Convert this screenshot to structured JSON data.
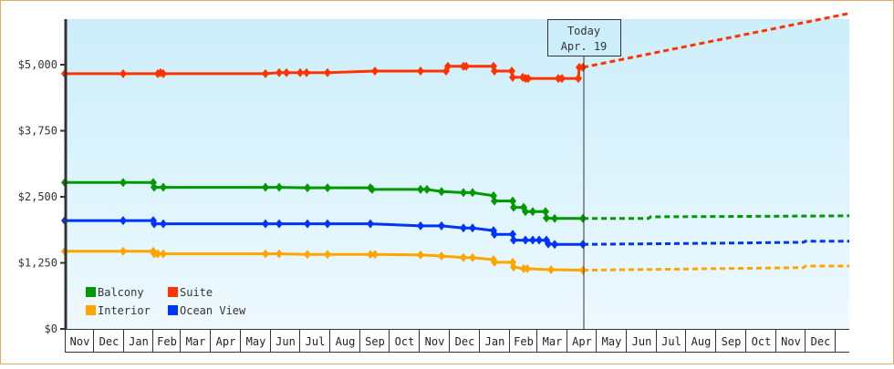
{
  "chart_data": {
    "type": "line",
    "title": "",
    "xlabel": "",
    "ylabel": "",
    "ylim": [
      0,
      5000
    ],
    "y_ticks": [
      "$0",
      "$1,250",
      "$2,500",
      "$3,750",
      "$5,000"
    ],
    "y_tick_values": [
      0,
      1250,
      2500,
      3750,
      5000
    ],
    "x_months": [
      "Nov",
      "Dec",
      "Jan",
      "Feb",
      "Mar",
      "Apr",
      "May",
      "Jun",
      "Jul",
      "Aug",
      "Sep",
      "Oct",
      "Nov",
      "Dec",
      "Jan",
      "Feb",
      "Mar",
      "Apr",
      "May",
      "Jun",
      "Jul",
      "Aug",
      "Sep",
      "Oct",
      "Nov",
      "Dec"
    ],
    "today_marker": {
      "line1": "Today",
      "line2": "Apr. 19"
    },
    "legend": [
      {
        "name": "Balcony",
        "color": "#009900"
      },
      {
        "name": "Suite",
        "color": "#ff3300"
      },
      {
        "name": "Interior",
        "color": "#ffa500"
      },
      {
        "name": "Ocean View",
        "color": "#0033ff"
      }
    ],
    "series": [
      {
        "name": "Suite",
        "color": "#ff3300",
        "points": [
          [
            70,
            4830
          ],
          [
            134,
            4830
          ],
          [
            172,
            4830
          ],
          [
            175,
            4850
          ],
          [
            178,
            4830
          ],
          [
            290,
            4830
          ],
          [
            305,
            4850
          ],
          [
            313,
            4850
          ],
          [
            328,
            4850
          ],
          [
            335,
            4850
          ],
          [
            358,
            4850
          ],
          [
            410,
            4880
          ],
          [
            460,
            4880
          ],
          [
            488,
            4880
          ],
          [
            490,
            4970
          ],
          [
            507,
            4970
          ],
          [
            510,
            4970
          ],
          [
            540,
            4970
          ],
          [
            541,
            4880
          ],
          [
            560,
            4880
          ],
          [
            561,
            4760
          ],
          [
            572,
            4760
          ],
          [
            575,
            4740
          ],
          [
            578,
            4740
          ],
          [
            611,
            4740
          ],
          [
            615,
            4740
          ],
          [
            633,
            4740
          ],
          [
            634,
            4950
          ],
          [
            638,
            4950
          ]
        ],
        "projection": [
          [
            638,
            4950
          ],
          [
            930,
            5970
          ]
        ]
      },
      {
        "name": "Balcony",
        "color": "#009900",
        "points": [
          [
            70,
            2770
          ],
          [
            134,
            2770
          ],
          [
            167,
            2770
          ],
          [
            168,
            2680
          ],
          [
            178,
            2680
          ],
          [
            290,
            2680
          ],
          [
            305,
            2680
          ],
          [
            336,
            2670
          ],
          [
            358,
            2670
          ],
          [
            405,
            2670
          ],
          [
            407,
            2640
          ],
          [
            460,
            2640
          ],
          [
            467,
            2640
          ],
          [
            483,
            2600
          ],
          [
            507,
            2580
          ],
          [
            517,
            2580
          ],
          [
            540,
            2520
          ],
          [
            541,
            2420
          ],
          [
            561,
            2420
          ],
          [
            562,
            2300
          ],
          [
            573,
            2300
          ],
          [
            575,
            2220
          ],
          [
            583,
            2220
          ],
          [
            597,
            2220
          ],
          [
            598,
            2100
          ],
          [
            607,
            2090
          ],
          [
            638,
            2090
          ]
        ],
        "projection": [
          [
            638,
            2090
          ],
          [
            710,
            2090
          ],
          [
            712,
            2120
          ],
          [
            930,
            2140
          ]
        ]
      },
      {
        "name": "Ocean View",
        "color": "#0033ff",
        "points": [
          [
            70,
            2050
          ],
          [
            134,
            2050
          ],
          [
            167,
            2050
          ],
          [
            168,
            1990
          ],
          [
            178,
            1990
          ],
          [
            290,
            1990
          ],
          [
            305,
            1990
          ],
          [
            336,
            1990
          ],
          [
            358,
            1990
          ],
          [
            405,
            1990
          ],
          [
            460,
            1950
          ],
          [
            483,
            1950
          ],
          [
            507,
            1910
          ],
          [
            517,
            1910
          ],
          [
            540,
            1860
          ],
          [
            541,
            1790
          ],
          [
            561,
            1790
          ],
          [
            562,
            1680
          ],
          [
            575,
            1680
          ],
          [
            583,
            1680
          ],
          [
            590,
            1680
          ],
          [
            598,
            1680
          ],
          [
            600,
            1610
          ],
          [
            607,
            1600
          ],
          [
            638,
            1600
          ]
        ],
        "projection": [
          [
            638,
            1600
          ],
          [
            780,
            1620
          ],
          [
            880,
            1640
          ],
          [
            882,
            1660
          ],
          [
            930,
            1660
          ]
        ]
      },
      {
        "name": "Interior",
        "color": "#ffa500",
        "points": [
          [
            70,
            1470
          ],
          [
            134,
            1470
          ],
          [
            167,
            1470
          ],
          [
            168,
            1420
          ],
          [
            172,
            1420
          ],
          [
            178,
            1420
          ],
          [
            290,
            1420
          ],
          [
            305,
            1420
          ],
          [
            336,
            1410
          ],
          [
            358,
            1410
          ],
          [
            405,
            1410
          ],
          [
            410,
            1410
          ],
          [
            460,
            1400
          ],
          [
            483,
            1380
          ],
          [
            507,
            1350
          ],
          [
            517,
            1350
          ],
          [
            540,
            1310
          ],
          [
            541,
            1260
          ],
          [
            561,
            1260
          ],
          [
            562,
            1170
          ],
          [
            573,
            1140
          ],
          [
            577,
            1140
          ],
          [
            603,
            1120
          ],
          [
            638,
            1110
          ]
        ],
        "projection": [
          [
            638,
            1110
          ],
          [
            780,
            1140
          ],
          [
            880,
            1160
          ],
          [
            882,
            1190
          ],
          [
            930,
            1190
          ]
        ]
      }
    ]
  }
}
